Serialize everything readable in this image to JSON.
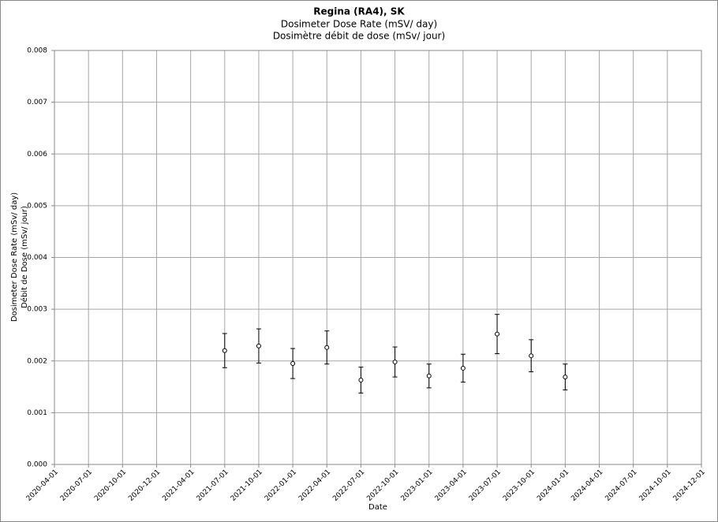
{
  "chart_data": {
    "type": "scatter",
    "title": "Regina (RA4), SK",
    "subtitle": [
      "Dosimeter Dose Rate (mSV/ day)",
      "Dosimètre débit de dose (mSv/ jour)"
    ],
    "ylabel": [
      "Dosimeter Dose Rate (mSv/ day)",
      "Débit de Dose (mSv/ jour)"
    ],
    "xlabel": "Date",
    "categories": [
      "2020-04-01",
      "2020-07-01",
      "2020-10-01",
      "2020-12-01",
      "2021-04-01",
      "2021-07-01",
      "2021-10-01",
      "2022-01-01",
      "2022-04-01",
      "2022-07-01",
      "2022-10-01",
      "2023-01-01",
      "2023-04-01",
      "2023-07-01",
      "2023-10-01",
      "2024-01-01",
      "2024-04-01",
      "2024-07-01",
      "2024-10-01",
      "2024-12-01"
    ],
    "values": [
      null,
      null,
      null,
      null,
      null,
      0.0022,
      0.00229,
      0.00195,
      0.00226,
      0.00163,
      0.00198,
      0.00171,
      0.00186,
      0.00252,
      0.0021,
      0.00169,
      null,
      null,
      null,
      null
    ],
    "errors": [
      null,
      null,
      null,
      null,
      null,
      0.00033,
      0.00033,
      0.00029,
      0.00032,
      0.00025,
      0.00029,
      0.00023,
      0.00027,
      0.00038,
      0.00031,
      0.00025,
      null,
      null,
      null,
      null
    ],
    "color": "#000000",
    "ylim": [
      0,
      0.008
    ],
    "yticks": [
      {
        "value": 0,
        "label": "0.000"
      },
      {
        "value": 0.001,
        "label": "0.001"
      },
      {
        "value": 0.002,
        "label": "0.002"
      },
      {
        "value": 0.003,
        "label": "0.003"
      },
      {
        "value": 0.004,
        "label": "0.004"
      },
      {
        "value": 0.005,
        "label": "0.005"
      },
      {
        "value": 0.006,
        "label": "0.006"
      },
      {
        "value": 0.007,
        "label": "0.007"
      },
      {
        "value": 0.008,
        "label": "0.008"
      }
    ],
    "grid": true
  }
}
